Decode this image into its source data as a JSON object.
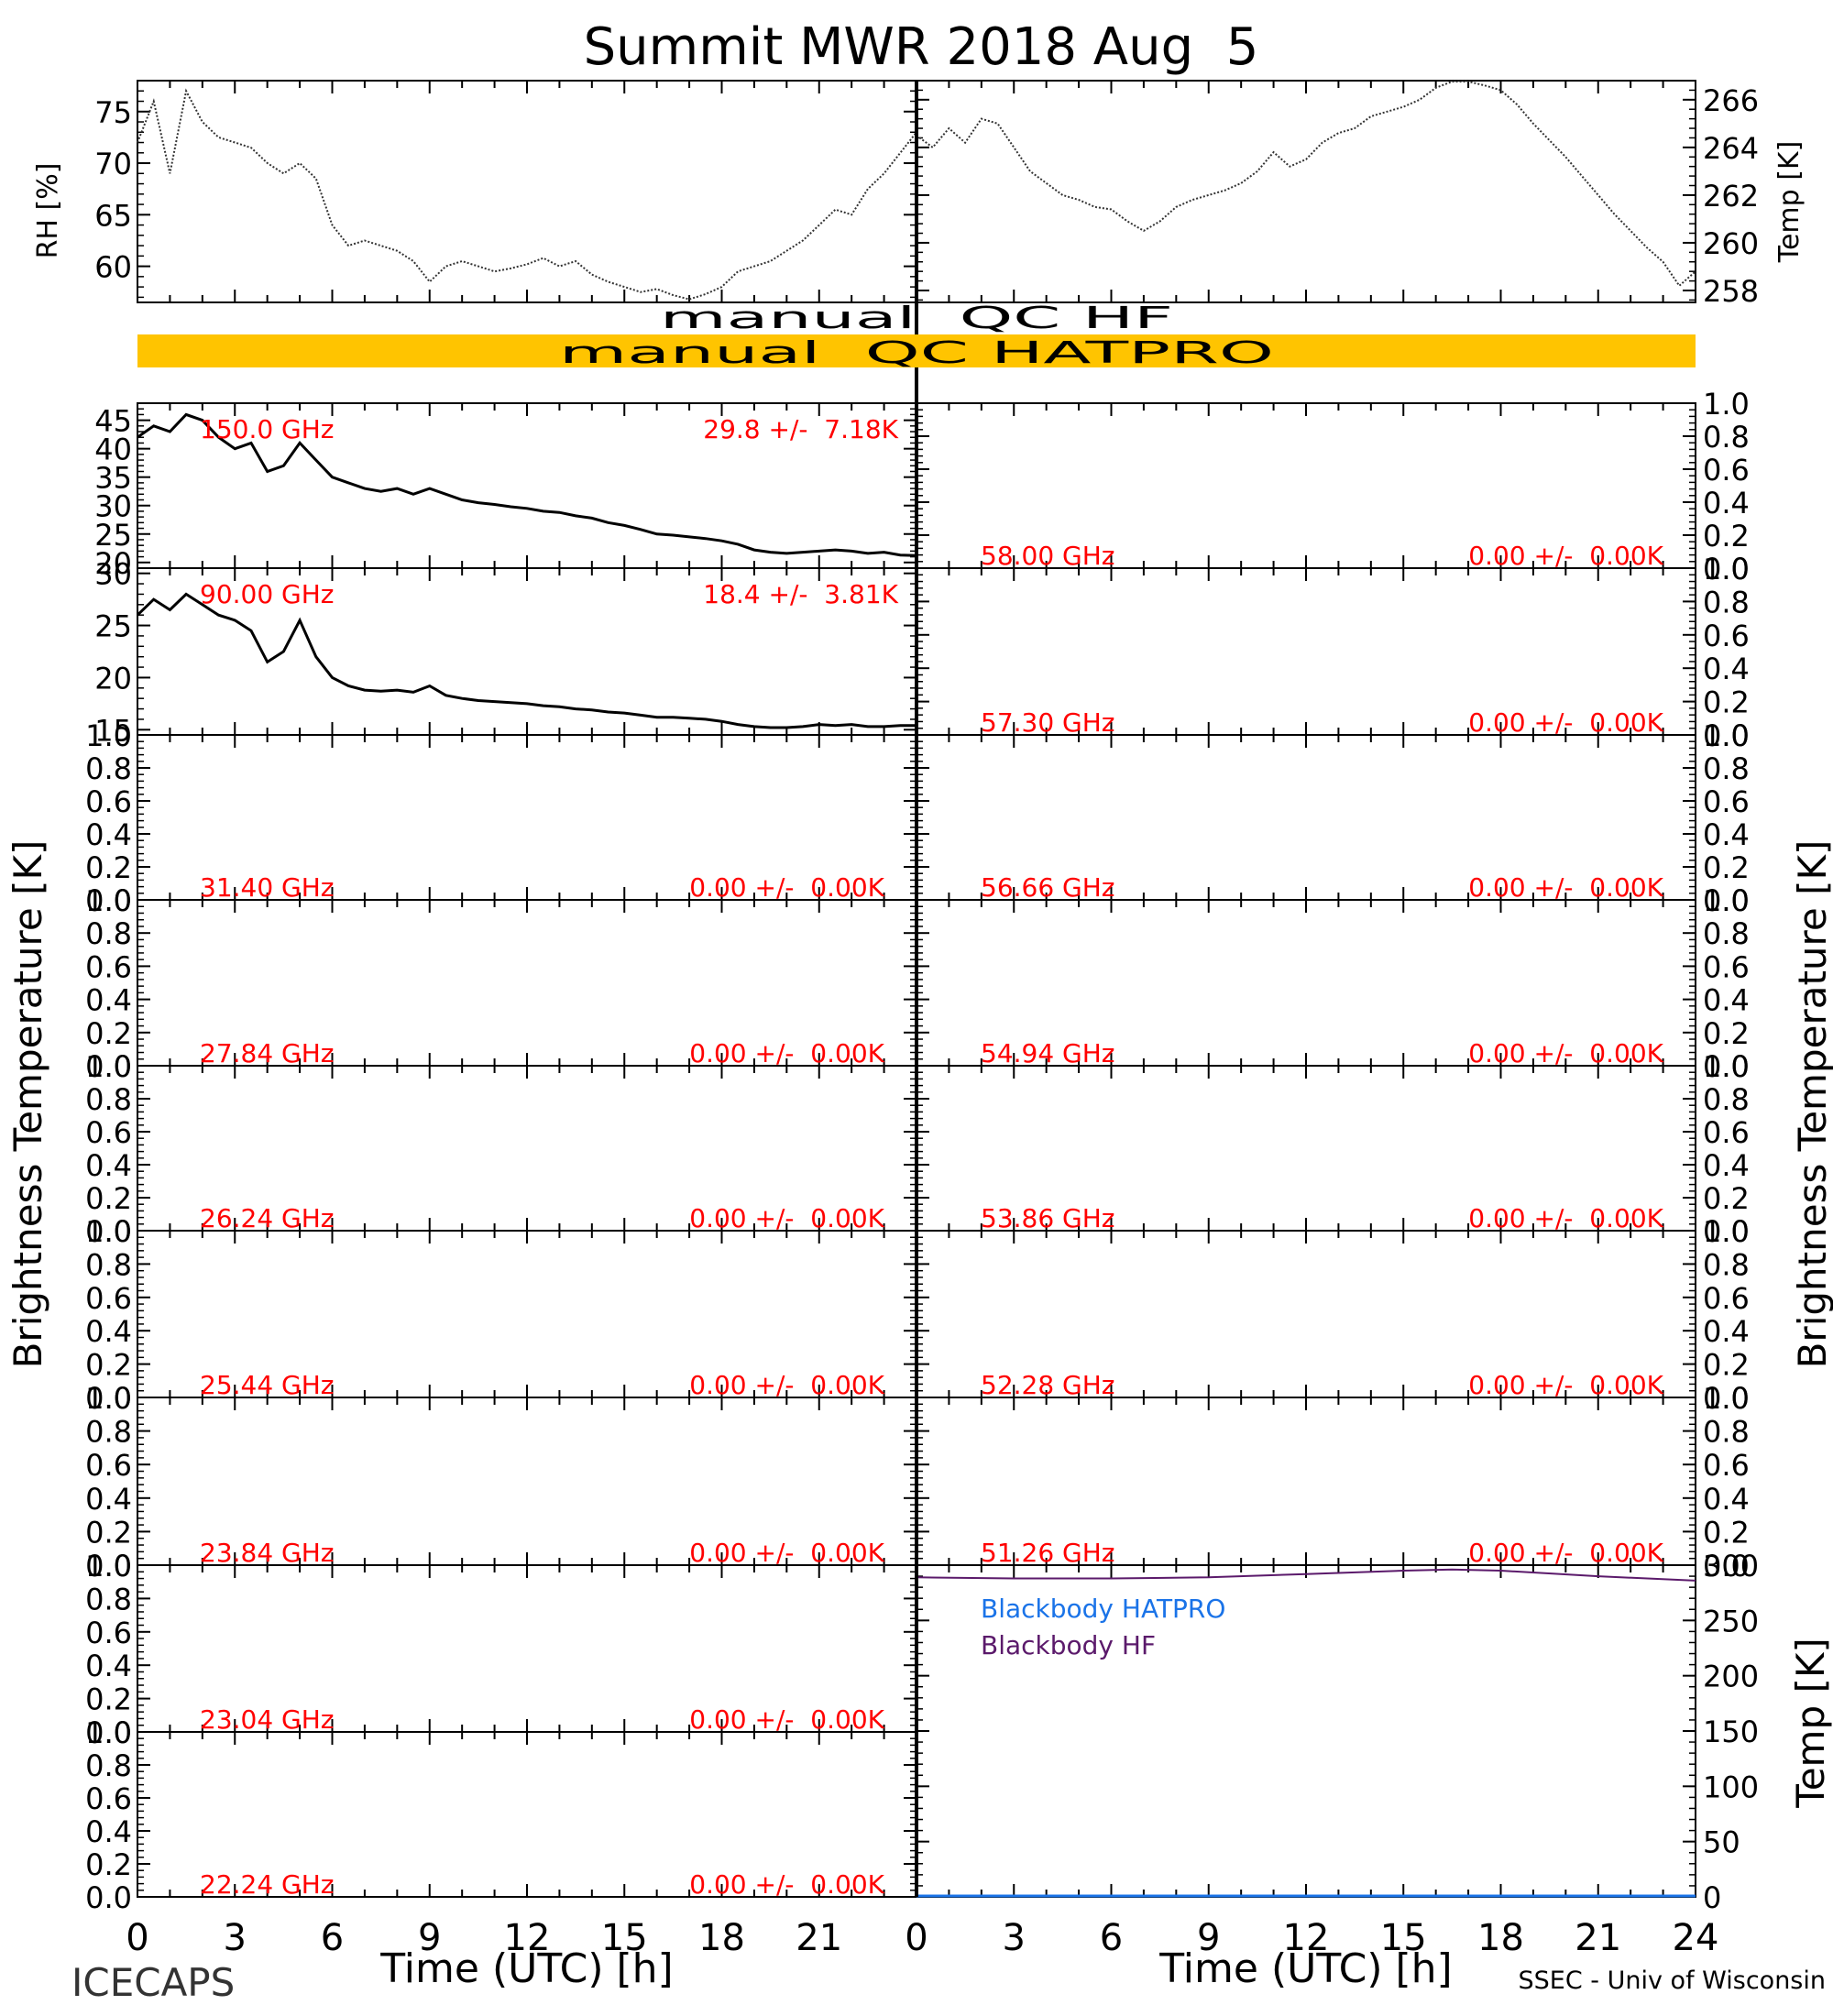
{
  "title": "Summit MWR 2018 Aug  5",
  "footer": {
    "left": "ICECAPS",
    "right": "SSEC - Univ of Wisconsin"
  },
  "colors": {
    "line": "#000000",
    "label_red": "#ff0000",
    "qc_bar": "#ffc400",
    "bb_hatpro": "#1a73e8",
    "bb_hf": "#5b1a6b"
  },
  "x_axis": {
    "label": "Time (UTC) [h]",
    "ticks": [
      "0",
      "3",
      "6",
      "9",
      "12",
      "15",
      "18",
      "21",
      "24"
    ],
    "ticks_left": [
      "0",
      "3",
      "6",
      "9",
      "12",
      "15",
      "18",
      "21"
    ]
  },
  "qc": {
    "hf": "manual  QC HF",
    "hatpro": "manual  QC HATPRO"
  },
  "side_labels": {
    "brightness_temperature": "Brightness Temperature [K]",
    "temp_k": "Temp [K]"
  },
  "chart_data": [
    {
      "type": "line",
      "id": "rh",
      "ylabel": "RH [%]",
      "xlim": [
        0,
        24
      ],
      "ylim": [
        56.5,
        78
      ],
      "yticks": [
        "60",
        "65",
        "70",
        "75"
      ],
      "x": [
        0,
        0.5,
        1,
        1.5,
        2,
        2.5,
        3,
        3.5,
        4,
        4.5,
        5,
        5.5,
        6,
        6.5,
        7,
        7.5,
        8,
        8.5,
        9,
        9.5,
        10,
        10.5,
        11,
        11.5,
        12,
        12.5,
        13,
        13.5,
        14,
        14.5,
        15,
        15.5,
        16,
        16.5,
        17,
        17.5,
        18,
        18.5,
        19,
        19.5,
        20,
        20.5,
        21,
        21.5,
        22,
        22.5,
        23,
        23.5,
        24
      ],
      "values": [
        72,
        76,
        69,
        77,
        74,
        72.5,
        72,
        71.5,
        70,
        69,
        70,
        68.5,
        64,
        62,
        62.5,
        62,
        61.5,
        60.5,
        58.5,
        60,
        60.5,
        60,
        59.5,
        59.8,
        60.2,
        60.8,
        60,
        60.5,
        59.2,
        58.5,
        58,
        57.5,
        57.8,
        57.2,
        56.8,
        57.3,
        58,
        59.5,
        60,
        60.5,
        61.5,
        62.5,
        64,
        65.5,
        65,
        67.5,
        69,
        71,
        73
      ]
    },
    {
      "type": "line",
      "id": "temp",
      "ylabel": "Temp [K]",
      "xlim": [
        0,
        24
      ],
      "ylim": [
        257.5,
        266.8
      ],
      "yticks": [
        "258",
        "260",
        "262",
        "264",
        "266"
      ],
      "x": [
        0,
        0.5,
        1,
        1.5,
        2,
        2.5,
        3,
        3.5,
        4,
        4.5,
        5,
        5.5,
        6,
        6.5,
        7,
        7.5,
        8,
        8.5,
        9,
        9.5,
        10,
        10.5,
        11,
        11.5,
        12,
        12.5,
        13,
        13.5,
        14,
        14.5,
        15,
        15.5,
        16,
        16.5,
        17,
        17.5,
        18,
        18.5,
        19,
        19.5,
        20,
        20.5,
        21,
        21.5,
        22,
        22.5,
        23,
        23.5,
        24
      ],
      "values": [
        264.5,
        264,
        264.8,
        264.2,
        265.2,
        265,
        264,
        263,
        262.5,
        262,
        261.8,
        261.5,
        261.4,
        260.9,
        260.5,
        260.9,
        261.5,
        261.8,
        262,
        262.2,
        262.5,
        263,
        263.8,
        263.2,
        263.5,
        264.2,
        264.6,
        264.8,
        265.3,
        265.5,
        265.7,
        266,
        266.5,
        266.8,
        266.8,
        266.6,
        266.4,
        265.8,
        265,
        264.3,
        263.6,
        262.8,
        262,
        261.2,
        260.5,
        259.8,
        259.2,
        258.2,
        258.8
      ]
    },
    {
      "type": "line",
      "id": "ch150",
      "freq_label": "150.0 GHz",
      "stats_label": "29.8 +/-  7.18K",
      "xlim": [
        0,
        24
      ],
      "ylim": [
        19,
        48
      ],
      "yticks": [
        "20",
        "25",
        "30",
        "35",
        "40",
        "45"
      ],
      "x": [
        0,
        0.5,
        1,
        1.5,
        2,
        2.5,
        3,
        3.5,
        4,
        4.5,
        5,
        5.5,
        6,
        6.5,
        7,
        7.5,
        8,
        8.5,
        9,
        9.5,
        10,
        10.5,
        11,
        11.5,
        12,
        12.5,
        13,
        13.5,
        14,
        14.5,
        15,
        15.5,
        16,
        16.5,
        17,
        17.5,
        18,
        18.5,
        19,
        19.5,
        20,
        20.5,
        21,
        21.5,
        22,
        22.5,
        23,
        23.5,
        24
      ],
      "values": [
        42,
        44,
        43,
        46,
        45,
        42,
        40,
        41,
        36,
        37,
        41,
        38,
        35,
        34,
        33,
        32.5,
        33,
        32,
        33,
        32,
        31,
        30.5,
        30.2,
        29.8,
        29.5,
        29,
        28.8,
        28.2,
        27.8,
        27,
        26.5,
        25.8,
        25,
        24.8,
        24.5,
        24.2,
        23.8,
        23.2,
        22.2,
        21.8,
        21.6,
        21.8,
        22,
        22.2,
        22,
        21.6,
        21.8,
        21.3,
        21.2
      ]
    },
    {
      "type": "line",
      "id": "ch90",
      "freq_label": "90.00 GHz",
      "stats_label": "18.4 +/-  3.81K",
      "xlim": [
        0,
        24
      ],
      "ylim": [
        14.5,
        30.5
      ],
      "yticks": [
        "15",
        "20",
        "25",
        "30"
      ],
      "x": [
        0,
        0.5,
        1,
        1.5,
        2,
        2.5,
        3,
        3.5,
        4,
        4.5,
        5,
        5.5,
        6,
        6.5,
        7,
        7.5,
        8,
        8.5,
        9,
        9.5,
        10,
        10.5,
        11,
        11.5,
        12,
        12.5,
        13,
        13.5,
        14,
        14.5,
        15,
        15.5,
        16,
        16.5,
        17,
        17.5,
        18,
        18.5,
        19,
        19.5,
        20,
        20.5,
        21,
        21.5,
        22,
        22.5,
        23,
        23.5,
        24
      ],
      "values": [
        26,
        27.5,
        26.5,
        28,
        27,
        26,
        25.5,
        24.5,
        21.5,
        22.5,
        25.5,
        22,
        20,
        19.2,
        18.8,
        18.7,
        18.8,
        18.6,
        19.2,
        18.3,
        18,
        17.8,
        17.7,
        17.6,
        17.5,
        17.3,
        17.2,
        17,
        16.9,
        16.7,
        16.6,
        16.4,
        16.2,
        16.2,
        16.1,
        16,
        15.8,
        15.5,
        15.3,
        15.2,
        15.2,
        15.3,
        15.5,
        15.4,
        15.5,
        15.3,
        15.3,
        15.4,
        15.4
      ]
    },
    {
      "type": "line",
      "id": "ch31.40",
      "freq_label": "31.40 GHz",
      "stats_label": "0.00 +/-  0.00K",
      "ylim": [
        0,
        1
      ],
      "yticks": [
        "0.0",
        "0.2",
        "0.4",
        "0.6",
        "0.8",
        "1.0"
      ],
      "values": []
    },
    {
      "type": "line",
      "id": "ch27.84",
      "freq_label": "27.84 GHz",
      "stats_label": "0.00 +/-  0.00K",
      "ylim": [
        0,
        1
      ],
      "yticks": [
        "0.0",
        "0.2",
        "0.4",
        "0.6",
        "0.8",
        "1.0"
      ],
      "values": []
    },
    {
      "type": "line",
      "id": "ch26.24",
      "freq_label": "26.24 GHz",
      "stats_label": "0.00 +/-  0.00K",
      "ylim": [
        0,
        1
      ],
      "yticks": [
        "0.0",
        "0.2",
        "0.4",
        "0.6",
        "0.8",
        "1.0"
      ],
      "values": []
    },
    {
      "type": "line",
      "id": "ch25.44",
      "freq_label": "25.44 GHz",
      "stats_label": "0.00 +/-  0.00K",
      "ylim": [
        0,
        1
      ],
      "yticks": [
        "0.0",
        "0.2",
        "0.4",
        "0.6",
        "0.8",
        "1.0"
      ],
      "values": []
    },
    {
      "type": "line",
      "id": "ch23.84",
      "freq_label": "23.84 GHz",
      "stats_label": "0.00 +/-  0.00K",
      "ylim": [
        0,
        1
      ],
      "yticks": [
        "0.0",
        "0.2",
        "0.4",
        "0.6",
        "0.8",
        "1.0"
      ],
      "values": []
    },
    {
      "type": "line",
      "id": "ch23.04",
      "freq_label": "23.04 GHz",
      "stats_label": "0.00 +/-  0.00K",
      "ylim": [
        0,
        1
      ],
      "yticks": [
        "0.0",
        "0.2",
        "0.4",
        "0.6",
        "0.8",
        "1.0"
      ],
      "values": []
    },
    {
      "type": "line",
      "id": "ch22.24",
      "freq_label": "22.24 GHz",
      "stats_label": "0.00 +/-  0.00K",
      "ylim": [
        0,
        1
      ],
      "yticks": [
        "0.0",
        "0.2",
        "0.4",
        "0.6",
        "0.8",
        "1.0"
      ],
      "values": []
    },
    {
      "type": "line",
      "id": "ch58.00",
      "freq_label": "58.00 GHz",
      "stats_label": "0.00 +/-  0.00K",
      "ylim": [
        0,
        1
      ],
      "yticks": [
        "0.0",
        "0.2",
        "0.4",
        "0.6",
        "0.8",
        "1.0"
      ],
      "values": []
    },
    {
      "type": "line",
      "id": "ch57.30",
      "freq_label": "57.30 GHz",
      "stats_label": "0.00 +/-  0.00K",
      "ylim": [
        0,
        1
      ],
      "yticks": [
        "0.0",
        "0.2",
        "0.4",
        "0.6",
        "0.8",
        "1.0"
      ],
      "values": []
    },
    {
      "type": "line",
      "id": "ch56.66",
      "freq_label": "56.66 GHz",
      "stats_label": "0.00 +/-  0.00K",
      "ylim": [
        0,
        1
      ],
      "yticks": [
        "0.0",
        "0.2",
        "0.4",
        "0.6",
        "0.8",
        "1.0"
      ],
      "values": []
    },
    {
      "type": "line",
      "id": "ch54.94",
      "freq_label": "54.94 GHz",
      "stats_label": "0.00 +/-  0.00K",
      "ylim": [
        0,
        1
      ],
      "yticks": [
        "0.0",
        "0.2",
        "0.4",
        "0.6",
        "0.8",
        "1.0"
      ],
      "values": []
    },
    {
      "type": "line",
      "id": "ch53.86",
      "freq_label": "53.86 GHz",
      "stats_label": "0.00 +/-  0.00K",
      "ylim": [
        0,
        1
      ],
      "yticks": [
        "0.0",
        "0.2",
        "0.4",
        "0.6",
        "0.8",
        "1.0"
      ],
      "values": []
    },
    {
      "type": "line",
      "id": "ch52.28",
      "freq_label": "52.28 GHz",
      "stats_label": "0.00 +/-  0.00K",
      "ylim": [
        0,
        1
      ],
      "yticks": [
        "0.0",
        "0.2",
        "0.4",
        "0.6",
        "0.8",
        "1.0"
      ],
      "values": []
    },
    {
      "type": "line",
      "id": "ch51.26",
      "freq_label": "51.26 GHz",
      "stats_label": "0.00 +/-  0.00K",
      "ylim": [
        0,
        1
      ],
      "yticks": [
        "0.0",
        "0.2",
        "0.4",
        "0.6",
        "0.8",
        "1.0"
      ],
      "values": []
    },
    {
      "type": "line",
      "id": "blackbody",
      "ylabel": "Temp [K]",
      "xlim": [
        0,
        24
      ],
      "ylim": [
        0,
        300
      ],
      "yticks": [
        "0",
        "50",
        "100",
        "150",
        "200",
        "250",
        "300"
      ],
      "x": [
        0,
        3,
        6,
        9,
        12,
        15,
        16.5,
        18,
        21,
        24
      ],
      "series": [
        {
          "name": "Blackbody HATPRO",
          "values": [
            0,
            0,
            0,
            0,
            0,
            0,
            0,
            0,
            0,
            0
          ]
        },
        {
          "name": "Blackbody HF",
          "values": [
            289,
            288,
            288,
            289,
            292,
            295,
            296,
            295,
            290,
            286
          ]
        }
      ]
    }
  ]
}
